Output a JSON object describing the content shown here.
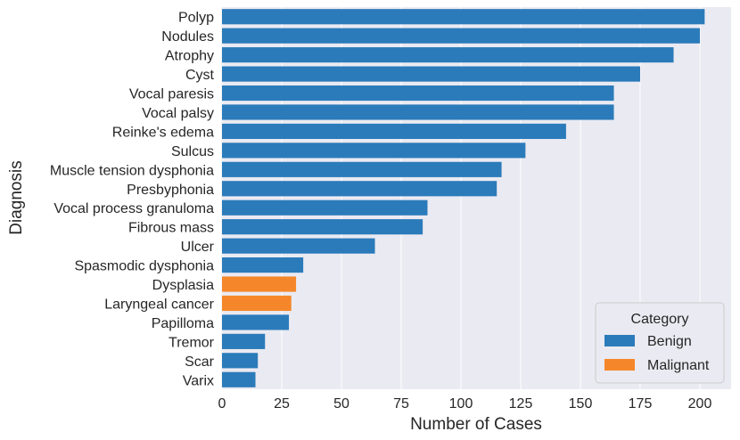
{
  "chart_data": {
    "type": "bar",
    "orientation": "horizontal",
    "title": "",
    "xlabel": "Number of Cases",
    "ylabel": "Diagnosis",
    "xlim": [
      0,
      212
    ],
    "xticks": [
      0,
      25,
      50,
      75,
      100,
      125,
      150,
      175,
      200
    ],
    "grid": true,
    "categories": [
      "Polyp",
      "Nodules",
      "Atrophy",
      "Cyst",
      "Vocal paresis",
      "Vocal palsy",
      "Reinke's edema",
      "Sulcus",
      "Muscle tension dysphonia",
      "Presbyphonia",
      "Vocal process granuloma",
      "Fibrous mass",
      "Ulcer",
      "Spasmodic dysphonia",
      "Dysplasia",
      "Laryngeal cancer",
      "Papilloma",
      "Tremor",
      "Scar",
      "Varix"
    ],
    "values": [
      202,
      200,
      189,
      175,
      164,
      164,
      144,
      127,
      117,
      115,
      86,
      84,
      64,
      34,
      31,
      29,
      28,
      18,
      15,
      14
    ],
    "category_group": [
      "Benign",
      "Benign",
      "Benign",
      "Benign",
      "Benign",
      "Benign",
      "Benign",
      "Benign",
      "Benign",
      "Benign",
      "Benign",
      "Benign",
      "Benign",
      "Benign",
      "Malignant",
      "Malignant",
      "Benign",
      "Benign",
      "Benign",
      "Benign"
    ],
    "legend": {
      "title": "Category",
      "placement": "bottom-right",
      "entries": [
        {
          "name": "Benign",
          "color": "#2b7bba"
        },
        {
          "name": "Malignant",
          "color": "#f5872a"
        }
      ]
    },
    "colors": {
      "Benign": "#2b7bba",
      "Malignant": "#f5872a",
      "plot_background": "#eaeaf2",
      "grid": "#ffffff"
    }
  }
}
